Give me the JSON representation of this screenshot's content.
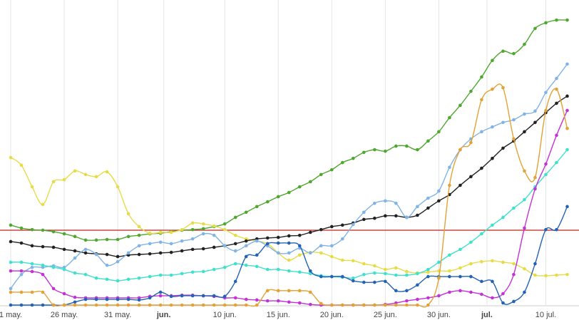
{
  "chart_data": {
    "type": "line",
    "x": [
      0,
      1,
      2,
      3,
      4,
      5,
      6,
      7,
      8,
      9,
      10,
      11,
      12,
      13,
      14,
      15,
      16,
      17,
      18,
      19,
      20,
      21,
      22,
      23,
      24,
      25,
      26,
      27,
      28,
      29,
      30,
      31,
      32,
      33,
      34,
      35,
      36,
      37,
      38,
      39,
      40,
      41,
      42,
      43,
      44,
      45,
      46,
      47,
      48,
      49,
      50,
      51,
      52
    ],
    "xlim": [
      -1,
      53.1
    ],
    "ylim": [
      0,
      100
    ],
    "xticks": [
      {
        "value": 0,
        "label": "1 may."
      },
      {
        "value": 5,
        "label": "26 may."
      },
      {
        "value": 10,
        "label": "31 may."
      },
      {
        "value": 14.3,
        "label": "jun."
      },
      {
        "value": 20,
        "label": "10 jun."
      },
      {
        "value": 25,
        "label": "15 jun."
      },
      {
        "value": 30,
        "label": "20 jun."
      },
      {
        "value": 35,
        "label": "25 jun."
      },
      {
        "value": 40,
        "label": "30 jun."
      },
      {
        "value": 44.5,
        "label": "jul."
      },
      {
        "value": 50,
        "label": "10 jul."
      }
    ],
    "grid": true,
    "reference_line": {
      "value": 25,
      "color": "#c0201c"
    },
    "series": [
      {
        "color": "#4ea72e",
        "values": [
          26.7,
          25.7,
          25.2,
          25,
          24.5,
          23.8,
          22.9,
          21.7,
          21.7,
          21.9,
          21.9,
          22.9,
          23.3,
          23.8,
          24,
          24.5,
          25,
          25.2,
          25.5,
          26.2,
          27.1,
          29.3,
          31,
          32.9,
          34.5,
          36.2,
          37.6,
          39.5,
          41.2,
          43.6,
          45.2,
          47.6,
          49,
          51,
          51.9,
          51.4,
          53.1,
          53.1,
          51.9,
          54.8,
          57.9,
          62.6,
          66.7,
          71.4,
          76.2,
          81.7,
          84.8,
          84,
          87.1,
          92.4,
          94.3,
          95.2,
          95.2
        ]
      },
      {
        "color": "#e6dc48",
        "values": [
          49.3,
          46.7,
          39.5,
          33.6,
          41.2,
          41.9,
          44.8,
          43.6,
          42.9,
          44.5,
          39.5,
          30.5,
          26.2,
          24,
          24.3,
          24.3,
          25.2,
          27.4,
          27.1,
          26.4,
          25.2,
          23.3,
          22.1,
          21.4,
          20.5,
          17.4,
          15,
          16.7,
          17.6,
          17.4,
          16.2,
          15,
          14.8,
          13.8,
          13.1,
          11.9,
          12.4,
          11.2,
          10.7,
          11,
          11.4,
          11.4,
          12.4,
          13.8,
          14.5,
          14.8,
          14.3,
          13.8,
          12.1,
          10,
          9.8,
          10,
          10.2
        ]
      },
      {
        "color": "#222222",
        "values": [
          21.2,
          20.7,
          19.8,
          19.5,
          19.3,
          18.6,
          18.1,
          17.4,
          17.1,
          16.9,
          16.2,
          16.7,
          16.9,
          17.1,
          17.4,
          17.6,
          18.1,
          18.6,
          18.8,
          19.3,
          19.8,
          20.5,
          21.4,
          22.1,
          22.4,
          22.6,
          23.1,
          23.3,
          24.3,
          25.2,
          26.2,
          26.7,
          27.4,
          28.6,
          29,
          29.8,
          29.8,
          29.3,
          30,
          32.4,
          34.8,
          36.9,
          40,
          42.9,
          45.7,
          49,
          52.4,
          54.8,
          57.9,
          61,
          64.3,
          67.4,
          69.8
        ]
      },
      {
        "color": "#80b3e6",
        "values": [
          5.5,
          10.2,
          12.6,
          12.6,
          13.1,
          12.6,
          15.7,
          18.6,
          16.9,
          13.3,
          14.5,
          17.4,
          19.8,
          20.5,
          21,
          20.5,
          21.4,
          22.1,
          23.8,
          23.3,
          19.8,
          18.1,
          19.8,
          21.4,
          19.8,
          17.4,
          17.4,
          19,
          17.4,
          19.8,
          19.8,
          22.1,
          26.9,
          31,
          34,
          34.8,
          34,
          29.3,
          32.9,
          35.7,
          38.1,
          46,
          51.9,
          55.5,
          57.9,
          59.5,
          61,
          61.9,
          63.8,
          64.8,
          71,
          75.7,
          80.5
        ]
      },
      {
        "color": "#3fe0cc",
        "values": [
          14.3,
          14.3,
          13.8,
          13.3,
          12.6,
          11.9,
          10.7,
          10.2,
          9,
          8.6,
          8.1,
          8.6,
          9,
          9.5,
          10,
          10,
          10.5,
          11,
          11.2,
          11.9,
          12.6,
          13.8,
          13.3,
          12.9,
          11.9,
          11.9,
          11.4,
          11,
          10.5,
          9.8,
          9.5,
          9.3,
          9,
          10.2,
          10.7,
          10.5,
          10,
          10,
          10.5,
          11.9,
          14.3,
          16.7,
          18.6,
          21,
          23.8,
          26.7,
          29.3,
          32.4,
          35.2,
          39.5,
          43.6,
          47.6,
          51.9
        ]
      },
      {
        "color": "#c232d4",
        "values": [
          11.4,
          11.4,
          11.2,
          10.2,
          5.5,
          3.8,
          2.6,
          2.4,
          2.4,
          2.4,
          2.4,
          2.4,
          2.4,
          2.9,
          3.1,
          3.1,
          3.3,
          3.3,
          3.1,
          2.9,
          2.4,
          2.4,
          1.9,
          1.7,
          1.4,
          1.4,
          1,
          0.7,
          0.2,
          0,
          0,
          0,
          0,
          0,
          0,
          0.2,
          0.7,
          1.4,
          1.9,
          2.4,
          3.1,
          4.3,
          4.8,
          4.3,
          3.6,
          2.4,
          3.8,
          10.2,
          25.7,
          38.8,
          47.1,
          56.7,
          65
        ]
      },
      {
        "color": "#2462b4",
        "values": [
          0,
          0,
          0,
          0,
          0,
          0,
          1,
          1.9,
          1.9,
          1.9,
          1.9,
          1.9,
          1.7,
          2.4,
          4.3,
          2.9,
          3.1,
          3.1,
          3.1,
          3.1,
          2.9,
          7.9,
          16.2,
          16.7,
          20.5,
          20.7,
          20.7,
          19.8,
          11.4,
          9.5,
          9.5,
          9.5,
          8.1,
          7.6,
          7.6,
          7.9,
          4.8,
          4.8,
          6.7,
          9.5,
          9.5,
          9.5,
          9.5,
          9.5,
          7.9,
          7.9,
          0.7,
          1.2,
          4.3,
          13.8,
          25.2,
          25.2,
          32.9
        ]
      },
      {
        "color": "#e3a236",
        "values": [
          4.3,
          4.3,
          4.3,
          4.3,
          0,
          0,
          0,
          0,
          0,
          0,
          0,
          0,
          0,
          0,
          0,
          0,
          0,
          0,
          0,
          0,
          0,
          0,
          0,
          0,
          4.8,
          4.8,
          4.8,
          4.8,
          4.3,
          0.5,
          0,
          0,
          0,
          0,
          0,
          0,
          0,
          0,
          0,
          0,
          9,
          40,
          51.9,
          54.3,
          68.6,
          72.1,
          72.6,
          55.5,
          44.8,
          42.6,
          65,
          72.1,
          59
        ]
      }
    ]
  }
}
